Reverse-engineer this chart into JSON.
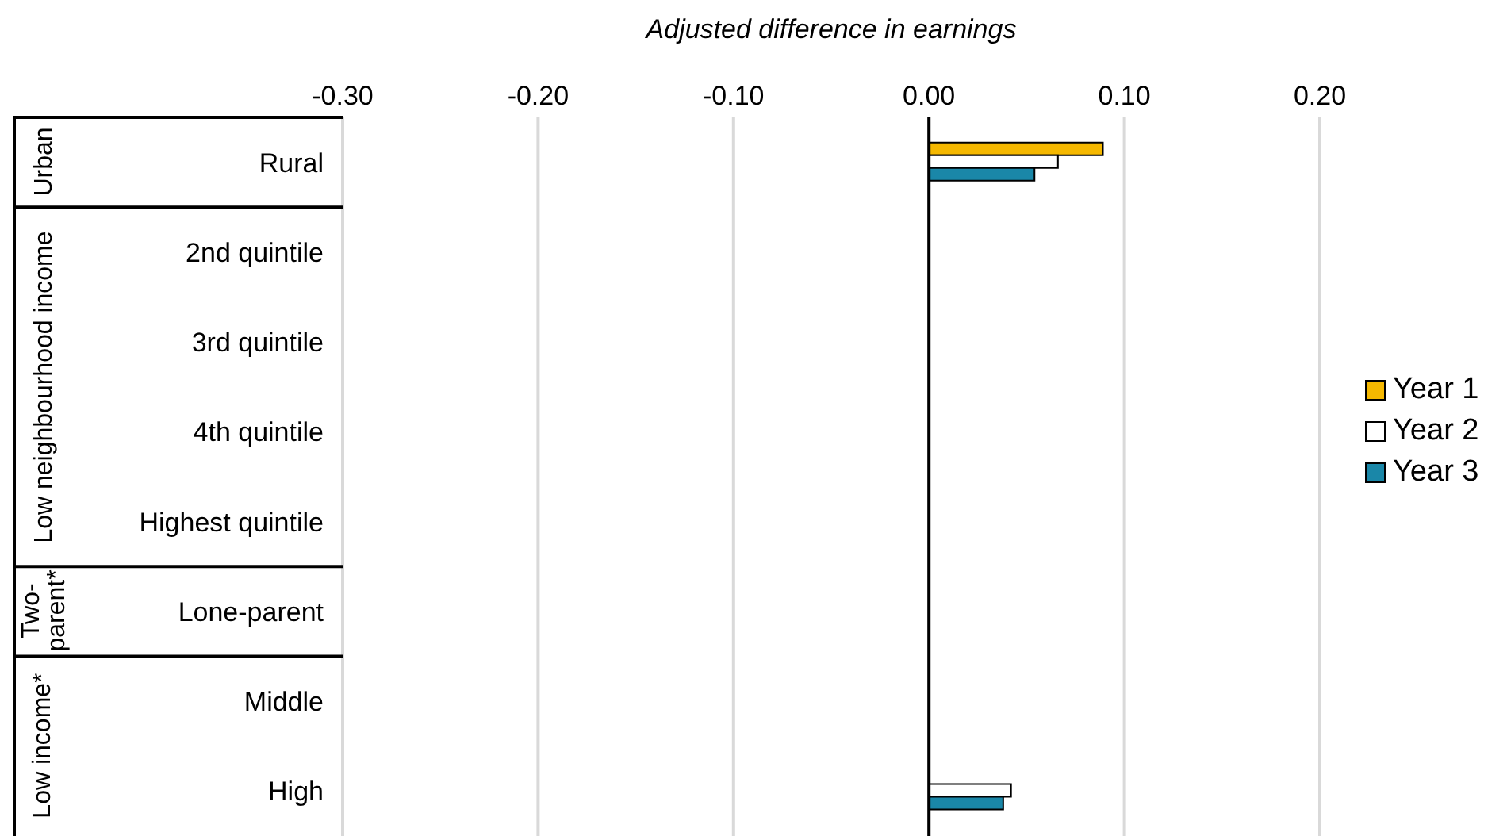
{
  "chart_data": {
    "type": "bar",
    "orientation": "horizontal",
    "xlabel": "Adjusted difference in earnings",
    "categories": [
      "Rural",
      "2nd quintile",
      "3rd quintile",
      "4th quintile",
      "Highest quintile",
      "Lone-parent",
      "Middle",
      "High"
    ],
    "series": [
      {
        "name": "Year 1",
        "color": "#f5b800",
        "values": [
          0.089,
          null,
          null,
          null,
          null,
          null,
          null,
          null
        ]
      },
      {
        "name": "Year 2",
        "color": "#ffffff",
        "values": [
          0.066,
          null,
          null,
          null,
          null,
          null,
          null,
          0.042
        ]
      },
      {
        "name": "Year 3",
        "color": "#1a87a8",
        "values": [
          0.054,
          null,
          null,
          null,
          null,
          null,
          null,
          0.038
        ]
      }
    ],
    "xlim": [
      -0.3,
      0.2
    ],
    "xticks": [
      {
        "value": -0.3,
        "label": "-0.30"
      },
      {
        "value": -0.2,
        "label": "-0.20"
      },
      {
        "value": -0.1,
        "label": "-0.10"
      },
      {
        "value": 0,
        "label": "0.00"
      },
      {
        "value": 0.1,
        "label": "0.10"
      },
      {
        "value": 0.2,
        "label": "0.20"
      }
    ],
    "grid": "x",
    "legend": "right",
    "ref_lines": [
      {
        "axis": "x",
        "value": 0,
        "color": "#000000"
      }
    ],
    "annotations": [
      "Urban",
      "Low neighbourhood income",
      "Two-parent*",
      "Low income*"
    ]
  }
}
